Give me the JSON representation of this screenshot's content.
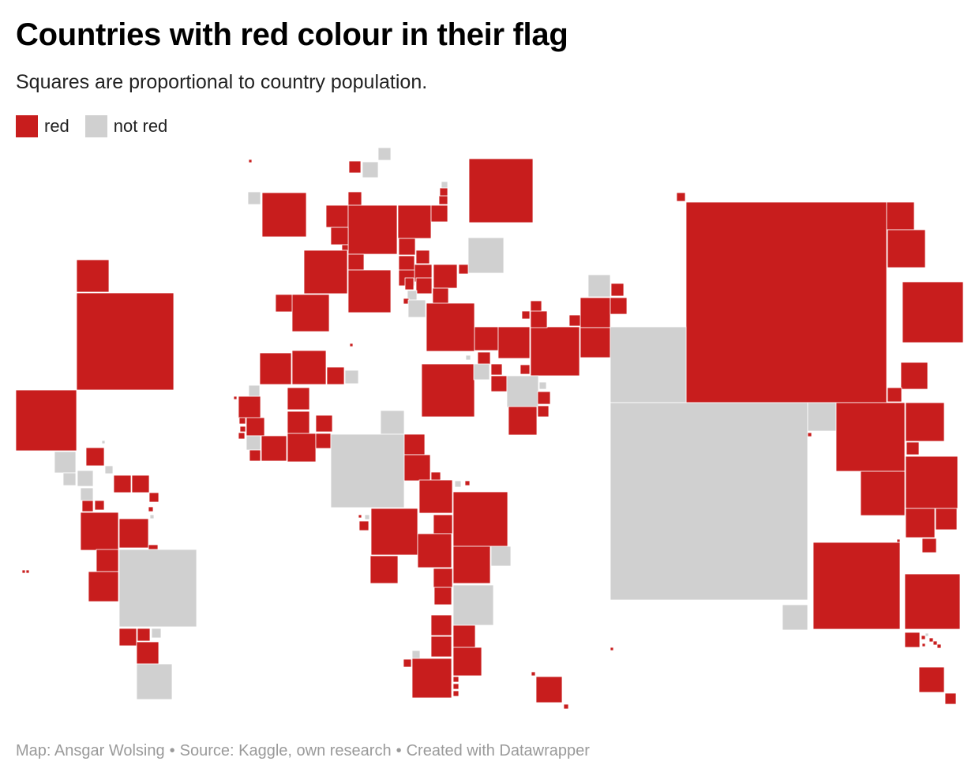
{
  "header": {
    "title": "Countries with red colour in their flag",
    "subtitle": "Squares are proportional to country population."
  },
  "legend": {
    "items": [
      {
        "label": "red",
        "color": "#c81d1d"
      },
      {
        "label": "not red",
        "color": "#d0d0d0"
      }
    ]
  },
  "footer": {
    "map_credit": "Map: Ansgar Wolsing",
    "source": "Source: Kaggle, own research",
    "tool": "Created with Datawrapper",
    "separator": "•"
  }
}
